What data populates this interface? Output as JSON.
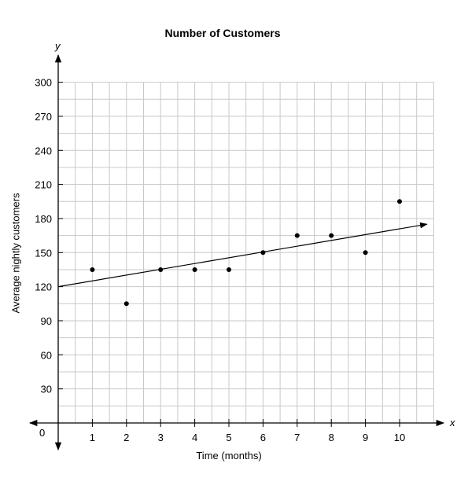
{
  "chart_data": {
    "type": "scatter",
    "title": "Number of Customers",
    "xlabel": "Time (months)",
    "ylabel": "Average nightly customers",
    "x_axis_name": "x",
    "y_axis_name": "y",
    "origin_label": "0",
    "xlim": [
      0,
      11
    ],
    "ylim": [
      0,
      300
    ],
    "x_ticks": [
      1,
      2,
      3,
      4,
      5,
      6,
      7,
      8,
      9,
      10
    ],
    "y_ticks": [
      30,
      60,
      90,
      120,
      150,
      180,
      210,
      240,
      270,
      300
    ],
    "grid": true,
    "points": [
      {
        "x": 1,
        "y": 135
      },
      {
        "x": 2,
        "y": 105
      },
      {
        "x": 3,
        "y": 135
      },
      {
        "x": 4,
        "y": 135
      },
      {
        "x": 5,
        "y": 135
      },
      {
        "x": 6,
        "y": 150
      },
      {
        "x": 7,
        "y": 165
      },
      {
        "x": 8,
        "y": 165
      },
      {
        "x": 9,
        "y": 150
      },
      {
        "x": 10,
        "y": 195
      }
    ],
    "trend_line": {
      "from": [
        0,
        120
      ],
      "to": [
        10.8,
        175
      ]
    }
  }
}
